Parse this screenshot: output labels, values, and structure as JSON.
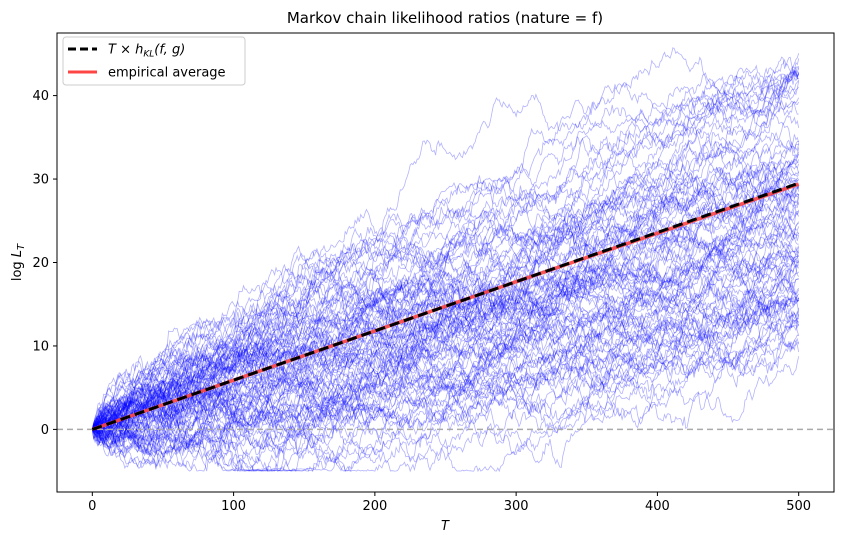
{
  "chart_data": {
    "type": "line",
    "title": "Markov chain likelihood ratios (nature = f)",
    "xlabel": "T",
    "ylabel": "log L_T",
    "xlim": [
      -25,
      525
    ],
    "ylim": [
      -7.5,
      47.5
    ],
    "xticks": [
      0,
      100,
      200,
      300,
      400,
      500
    ],
    "yticks": [
      0,
      10,
      20,
      30,
      40
    ],
    "reference_line": {
      "y": 0,
      "color": "#aaaaaa",
      "style": "dashed"
    },
    "paths": {
      "count": 100,
      "color": "#0000ff",
      "alpha": 0.3,
      "x_range": [
        0,
        500
      ],
      "final_values_range": [
        8.5,
        46
      ],
      "min_value": -5
    },
    "series": [
      {
        "name": "T × h_KL(f, g)",
        "x": [
          0,
          500
        ],
        "values": [
          0,
          29.5
        ],
        "color": "#000000",
        "style": "dashed"
      },
      {
        "name": "empirical average",
        "x": [
          0,
          100,
          200,
          300,
          400,
          500
        ],
        "values": [
          0,
          5.9,
          11.8,
          17.7,
          23.5,
          29.4
        ],
        "color": "#ff4444",
        "style": "solid"
      }
    ],
    "legend": {
      "position": "top-left",
      "entries": [
        {
          "label_main": "T × h",
          "label_sub": "KL",
          "label_tail": "(f, g)",
          "color": "#000000",
          "style": "dashed"
        },
        {
          "label_main": "empirical average",
          "label_sub": "",
          "label_tail": "",
          "color": "#ff4444",
          "style": "solid"
        }
      ]
    }
  }
}
